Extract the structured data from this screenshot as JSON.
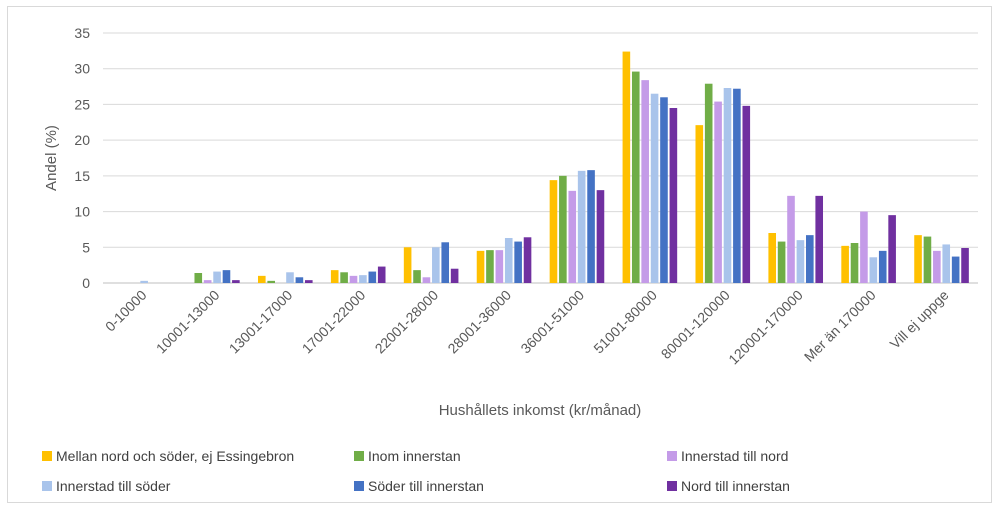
{
  "chart_data": {
    "type": "bar",
    "xlabel": "Hushållets inkomst (kr/månad)",
    "ylabel": "Andel (%)",
    "ylim": [
      0,
      35
    ],
    "yticks": [
      0,
      5,
      10,
      15,
      20,
      25,
      30,
      35
    ],
    "grid": true,
    "legend_position": "bottom",
    "categories": [
      "0-10000",
      "10001-13000",
      "13001-17000",
      "17001-22000",
      "22001-28000",
      "28001-36000",
      "36001-51000",
      "51001-80000",
      "80001-120000",
      "120001-170000",
      "Mer än 170000",
      "Vill ej uppge"
    ],
    "series": [
      {
        "name": "Mellan nord och söder, ej Essingebron",
        "color": "#FFC000",
        "values": [
          0,
          0,
          1.0,
          1.8,
          5.0,
          4.5,
          14.4,
          32.4,
          22.1,
          7.0,
          5.2,
          6.7
        ]
      },
      {
        "name": "Inom innerstan",
        "color": "#70AD47",
        "values": [
          0,
          1.4,
          0.3,
          1.5,
          1.8,
          4.6,
          15.0,
          29.6,
          27.9,
          5.8,
          5.6,
          6.5
        ]
      },
      {
        "name": "Innerstad till nord",
        "color": "#C49BE8",
        "values": [
          0,
          0.4,
          0,
          1.0,
          0.8,
          4.6,
          12.9,
          28.4,
          25.4,
          12.2,
          10.0,
          4.5
        ]
      },
      {
        "name": "Innerstad till söder",
        "color": "#A9C4EB",
        "values": [
          0.3,
          1.6,
          1.5,
          1.1,
          5.0,
          6.3,
          15.7,
          26.5,
          27.3,
          6.0,
          3.6,
          5.4
        ]
      },
      {
        "name": "Söder till innerstan",
        "color": "#4472C4",
        "values": [
          0,
          1.8,
          0.8,
          1.6,
          5.7,
          5.8,
          15.8,
          26.0,
          27.2,
          6.7,
          4.5,
          3.7
        ]
      },
      {
        "name": "Nord till innerstan",
        "color": "#7030A0",
        "values": [
          0,
          0.4,
          0.4,
          2.3,
          2.0,
          6.4,
          13.0,
          24.5,
          24.8,
          12.2,
          9.5,
          4.9
        ]
      }
    ]
  }
}
